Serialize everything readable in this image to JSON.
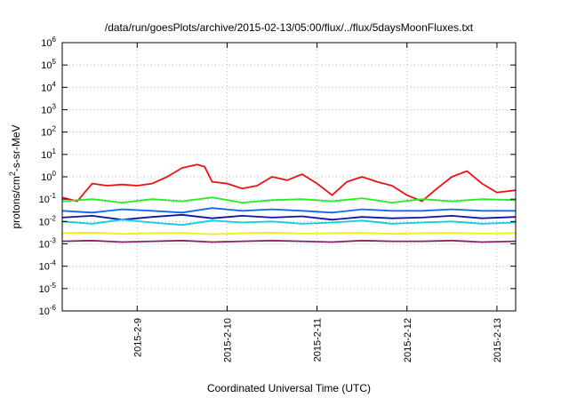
{
  "chart_data": {
    "type": "line",
    "title": "/data/run/goesPlots/archive/2015-02-13/05:00/flux/../flux/5daysMoonFluxes.txt",
    "xlabel": "Coordinated Universal Time (UTC)",
    "ylabel": {
      "prefix": "protons/cm",
      "sup": "2",
      "suffix": "-s-sr-MeV"
    },
    "y_scale": "log",
    "grid": true,
    "xlim": [
      "2015-02-08T04:00",
      "2015-02-13T05:00"
    ],
    "ylim": [
      1e-06,
      1000000
    ],
    "x_ticks": [
      {
        "label": "2015-2-9",
        "value": "2015-02-09T00:00"
      },
      {
        "label": "2015-2-10",
        "value": "2015-02-10T00:00"
      },
      {
        "label": "2015-2-11",
        "value": "2015-02-11T00:00"
      },
      {
        "label": "2015-2-12",
        "value": "2015-02-12T00:00"
      },
      {
        "label": "2015-2-13",
        "value": "2015-02-13T00:00"
      }
    ],
    "y_ticks": [
      {
        "base": "10",
        "exp": "-6",
        "value": 1e-06
      },
      {
        "base": "10",
        "exp": "-5",
        "value": 1e-05
      },
      {
        "base": "10",
        "exp": "-4",
        "value": 0.0001
      },
      {
        "base": "10",
        "exp": "-3",
        "value": 0.001
      },
      {
        "base": "10",
        "exp": "-2",
        "value": 0.01
      },
      {
        "base": "10",
        "exp": "-1",
        "value": 0.1
      },
      {
        "base": "10",
        "exp": "0",
        "value": 1
      },
      {
        "base": "10",
        "exp": "1",
        "value": 10
      },
      {
        "base": "10",
        "exp": "2",
        "value": 100
      },
      {
        "base": "10",
        "exp": "3",
        "value": 1000
      },
      {
        "base": "10",
        "exp": "4",
        "value": 10000
      },
      {
        "base": "10",
        "exp": "5",
        "value": 100000
      },
      {
        "base": "10",
        "exp": "6",
        "value": 1000000
      }
    ],
    "series": [
      {
        "color": "#ee1111",
        "x": [
          "2015-02-08T04:00",
          "2015-02-08T08:00",
          "2015-02-08T12:00",
          "2015-02-08T16:00",
          "2015-02-08T20:00",
          "2015-02-09T00:00",
          "2015-02-09T04:00",
          "2015-02-09T08:00",
          "2015-02-09T12:00",
          "2015-02-09T16:00",
          "2015-02-09T18:00",
          "2015-02-09T20:00",
          "2015-02-10T00:00",
          "2015-02-10T04:00",
          "2015-02-10T08:00",
          "2015-02-10T12:00",
          "2015-02-10T16:00",
          "2015-02-10T20:00",
          "2015-02-11T00:00",
          "2015-02-11T04:00",
          "2015-02-11T08:00",
          "2015-02-11T12:00",
          "2015-02-11T16:00",
          "2015-02-11T20:00",
          "2015-02-12T00:00",
          "2015-02-12T04:00",
          "2015-02-12T08:00",
          "2015-02-12T12:00",
          "2015-02-12T16:00",
          "2015-02-12T20:00",
          "2015-02-13T00:00",
          "2015-02-13T05:00"
        ],
        "y": [
          0.12,
          0.08,
          0.5,
          0.4,
          0.45,
          0.4,
          0.5,
          1.0,
          2.5,
          3.5,
          2.8,
          0.6,
          0.5,
          0.3,
          0.4,
          1.0,
          0.7,
          1.3,
          0.5,
          0.15,
          0.6,
          1.0,
          0.6,
          0.4,
          0.15,
          0.08,
          0.3,
          1.0,
          1.8,
          0.5,
          0.2,
          0.25
        ]
      },
      {
        "color": "#22ee22",
        "x": [
          "2015-02-08T04:00",
          "2015-02-08T12:00",
          "2015-02-08T20:00",
          "2015-02-09T04:00",
          "2015-02-09T12:00",
          "2015-02-09T20:00",
          "2015-02-10T04:00",
          "2015-02-10T12:00",
          "2015-02-10T20:00",
          "2015-02-11T04:00",
          "2015-02-11T12:00",
          "2015-02-11T20:00",
          "2015-02-12T04:00",
          "2015-02-12T12:00",
          "2015-02-12T20:00",
          "2015-02-13T05:00"
        ],
        "y": [
          0.08,
          0.1,
          0.07,
          0.1,
          0.08,
          0.12,
          0.07,
          0.09,
          0.1,
          0.08,
          0.11,
          0.07,
          0.1,
          0.08,
          0.1,
          0.09
        ]
      },
      {
        "color": "#1166ee",
        "x": [
          "2015-02-08T04:00",
          "2015-02-08T12:00",
          "2015-02-08T20:00",
          "2015-02-09T04:00",
          "2015-02-09T12:00",
          "2015-02-09T20:00",
          "2015-02-10T04:00",
          "2015-02-10T12:00",
          "2015-02-10T20:00",
          "2015-02-11T04:00",
          "2015-02-11T12:00",
          "2015-02-11T20:00",
          "2015-02-12T04:00",
          "2015-02-12T12:00",
          "2015-02-12T20:00",
          "2015-02-13T05:00"
        ],
        "y": [
          0.03,
          0.025,
          0.035,
          0.03,
          0.025,
          0.04,
          0.03,
          0.035,
          0.03,
          0.025,
          0.035,
          0.03,
          0.03,
          0.035,
          0.03,
          0.03
        ]
      },
      {
        "color": "#1111aa",
        "x": [
          "2015-02-08T04:00",
          "2015-02-08T12:00",
          "2015-02-08T20:00",
          "2015-02-09T04:00",
          "2015-02-09T12:00",
          "2015-02-09T20:00",
          "2015-02-10T04:00",
          "2015-02-10T12:00",
          "2015-02-10T20:00",
          "2015-02-11T04:00",
          "2015-02-11T12:00",
          "2015-02-11T20:00",
          "2015-02-12T04:00",
          "2015-02-12T12:00",
          "2015-02-12T20:00",
          "2015-02-13T05:00"
        ],
        "y": [
          0.015,
          0.018,
          0.012,
          0.016,
          0.02,
          0.014,
          0.018,
          0.015,
          0.017,
          0.012,
          0.016,
          0.014,
          0.015,
          0.018,
          0.014,
          0.016
        ]
      },
      {
        "color": "#11ccdd",
        "x": [
          "2015-02-08T04:00",
          "2015-02-08T12:00",
          "2015-02-08T20:00",
          "2015-02-09T04:00",
          "2015-02-09T12:00",
          "2015-02-09T20:00",
          "2015-02-10T04:00",
          "2015-02-10T12:00",
          "2015-02-10T20:00",
          "2015-02-11T04:00",
          "2015-02-11T12:00",
          "2015-02-11T20:00",
          "2015-02-12T04:00",
          "2015-02-12T12:00",
          "2015-02-12T20:00",
          "2015-02-13T05:00"
        ],
        "y": [
          0.01,
          0.008,
          0.012,
          0.009,
          0.007,
          0.011,
          0.009,
          0.01,
          0.008,
          0.009,
          0.011,
          0.008,
          0.009,
          0.01,
          0.008,
          0.009
        ]
      },
      {
        "color": "#eeee11",
        "x": [
          "2015-02-08T04:00",
          "2015-02-08T12:00",
          "2015-02-08T20:00",
          "2015-02-09T04:00",
          "2015-02-09T12:00",
          "2015-02-09T20:00",
          "2015-02-10T04:00",
          "2015-02-10T12:00",
          "2015-02-10T20:00",
          "2015-02-11T04:00",
          "2015-02-11T12:00",
          "2015-02-11T20:00",
          "2015-02-12T04:00",
          "2015-02-12T12:00",
          "2015-02-12T20:00",
          "2015-02-13T05:00"
        ],
        "y": [
          0.003,
          0.0032,
          0.0028,
          0.003,
          0.0031,
          0.0027,
          0.003,
          0.0032,
          0.0029,
          0.003,
          0.0031,
          0.0028,
          0.003,
          0.0031,
          0.0029,
          0.003
        ]
      },
      {
        "color": "#882266",
        "x": [
          "2015-02-08T04:00",
          "2015-02-08T12:00",
          "2015-02-08T20:00",
          "2015-02-09T04:00",
          "2015-02-09T12:00",
          "2015-02-09T20:00",
          "2015-02-10T04:00",
          "2015-02-10T12:00",
          "2015-02-10T20:00",
          "2015-02-11T04:00",
          "2015-02-11T12:00",
          "2015-02-11T20:00",
          "2015-02-12T04:00",
          "2015-02-12T12:00",
          "2015-02-12T20:00",
          "2015-02-13T05:00"
        ],
        "y": [
          0.0013,
          0.0014,
          0.0012,
          0.0013,
          0.0014,
          0.0012,
          0.0013,
          0.0014,
          0.0013,
          0.0012,
          0.0014,
          0.0013,
          0.0013,
          0.0014,
          0.0012,
          0.0013
        ]
      }
    ]
  }
}
